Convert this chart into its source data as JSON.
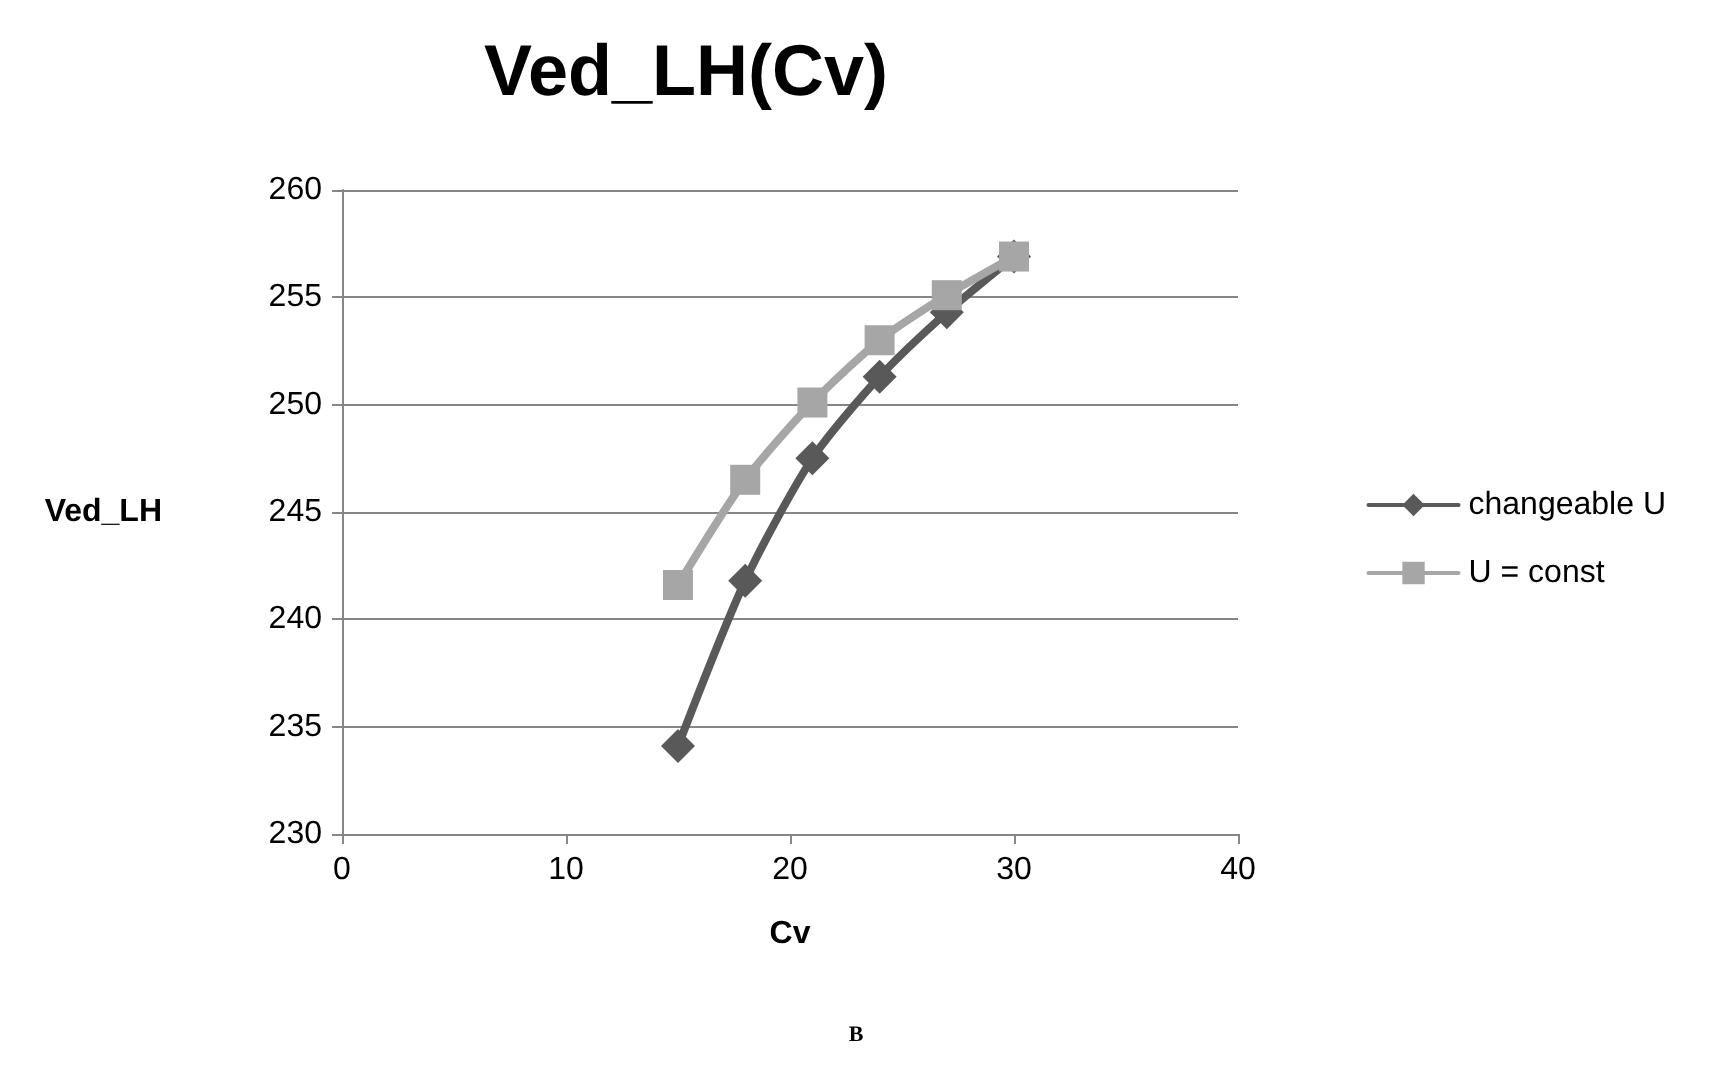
{
  "chart_data": {
    "type": "line",
    "title": "Ved_LH(Cv)",
    "xlabel": "Cv",
    "ylabel": "Ved_LH",
    "annotations": [
      "B"
    ],
    "x": [
      15,
      18,
      21,
      24,
      27,
      30
    ],
    "series": [
      {
        "name": "changeable U",
        "color": "#595959",
        "marker": "diamond",
        "values": [
          234.1,
          241.8,
          247.5,
          251.3,
          254.3,
          256.9
        ]
      },
      {
        "name": "U = const",
        "color": "#a6a6a6",
        "marker": "square",
        "values": [
          241.6,
          246.5,
          250.1,
          253.0,
          255.1,
          256.9
        ]
      }
    ],
    "xlim": [
      0,
      40
    ],
    "xticks": [
      0,
      10,
      20,
      30,
      40
    ],
    "ylim": [
      230,
      260
    ],
    "yticks": [
      230,
      235,
      240,
      245,
      250,
      255,
      260
    ],
    "grid": "y",
    "legend": "right"
  }
}
